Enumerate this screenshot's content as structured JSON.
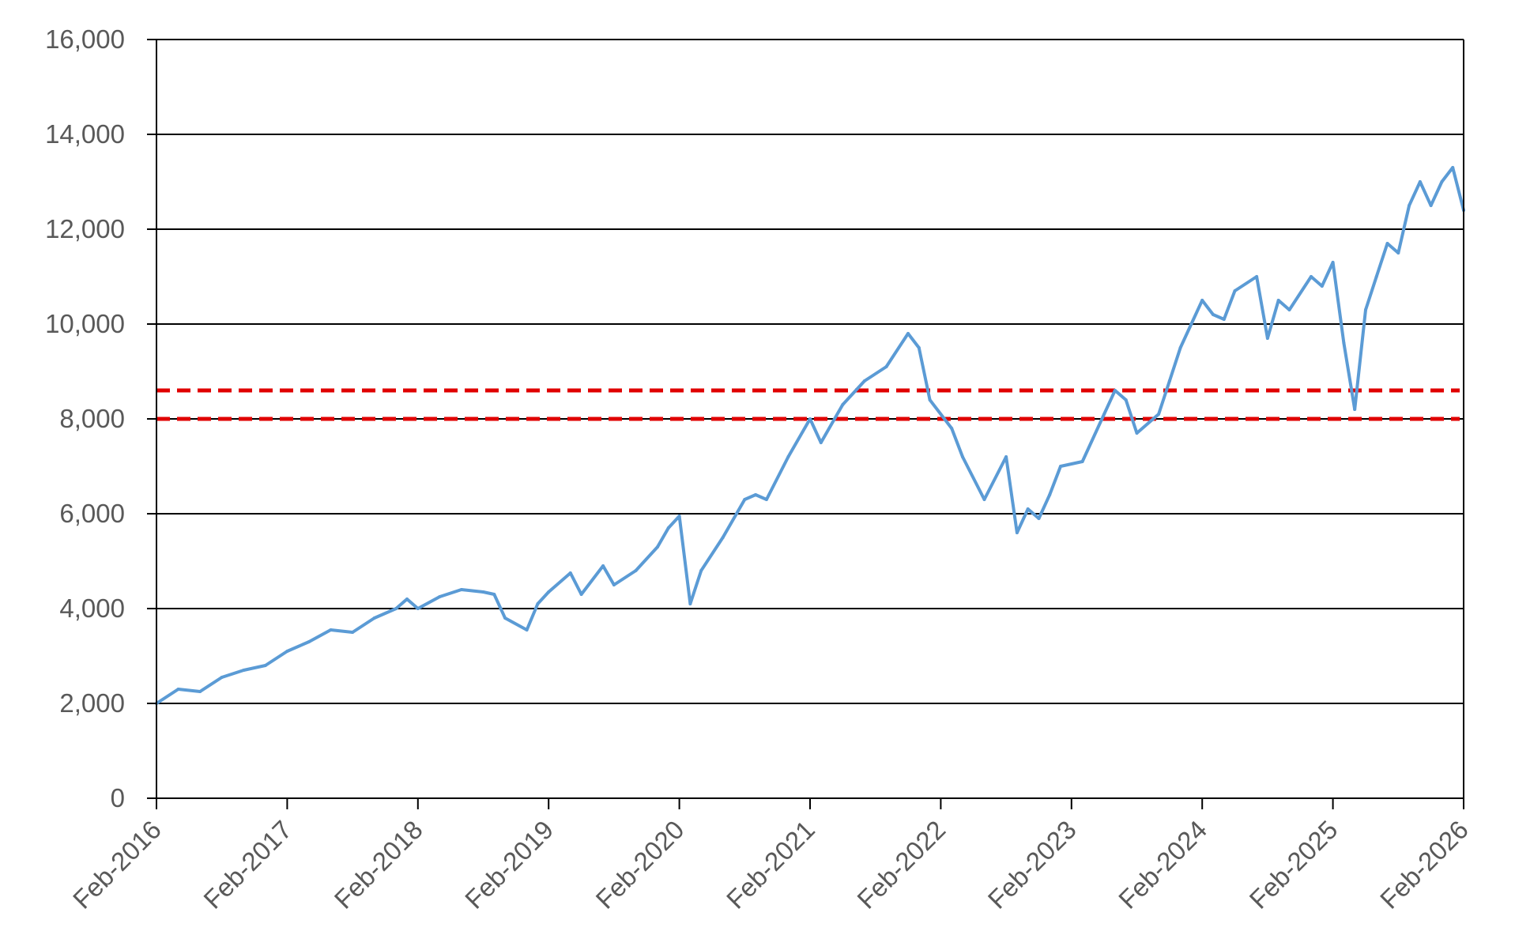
{
  "chart_data": {
    "type": "line",
    "title": "",
    "xlabel": "",
    "ylabel": "",
    "ylim": [
      0,
      16000
    ],
    "y_ticks": [
      0,
      2000,
      4000,
      6000,
      8000,
      10000,
      12000,
      14000,
      16000
    ],
    "y_tick_labels": [
      "0",
      "2,000",
      "4,000",
      "6,000",
      "8,000",
      "10,000",
      "12,000",
      "14,000",
      "16,000"
    ],
    "x_range": [
      "2016-02",
      "2026-02"
    ],
    "x_tick_labels": [
      "Feb-2016",
      "Feb-2017",
      "Feb-2018",
      "Feb-2019",
      "Feb-2020",
      "Feb-2021",
      "Feb-2022",
      "Feb-2023",
      "Feb-2024",
      "Feb-2025",
      "Feb-2026"
    ],
    "grid": "horizontal",
    "colors": {
      "series": "#5b9bd5",
      "reference": "#e00000",
      "grid": "#000000"
    },
    "series": [
      {
        "x": [
          "2016-02",
          "2016-04",
          "2016-06",
          "2016-08",
          "2016-10",
          "2016-12",
          "2017-02",
          "2017-04",
          "2017-06",
          "2017-08",
          "2017-10",
          "2017-12",
          "2018-01",
          "2018-02",
          "2018-04",
          "2018-06",
          "2018-08",
          "2018-09",
          "2018-10",
          "2018-12",
          "2019-01",
          "2019-02",
          "2019-04",
          "2019-05",
          "2019-07",
          "2019-08",
          "2019-10",
          "2019-12",
          "2020-01",
          "2020-02",
          "2020-03",
          "2020-04",
          "2020-06",
          "2020-08",
          "2020-09",
          "2020-10",
          "2020-12",
          "2021-02",
          "2021-03",
          "2021-05",
          "2021-07",
          "2021-09",
          "2021-11",
          "2021-12",
          "2022-01",
          "2022-03",
          "2022-04",
          "2022-06",
          "2022-08",
          "2022-09",
          "2022-10",
          "2022-11",
          "2022-12",
          "2023-01",
          "2023-03",
          "2023-05",
          "2023-06",
          "2023-07",
          "2023-08",
          "2023-10",
          "2023-11",
          "2023-12",
          "2024-01",
          "2024-02",
          "2024-03",
          "2024-04",
          "2024-05",
          "2024-07",
          "2024-08",
          "2024-09",
          "2024-10",
          "2024-12",
          "2025-01",
          "2025-02",
          "2025-03",
          "2025-04",
          "2025-05",
          "2025-06",
          "2025-07",
          "2025-08",
          "2025-09",
          "2025-10",
          "2025-11",
          "2025-12",
          "2026-01",
          "2026-02"
        ],
        "values": [
          2000,
          2300,
          2250,
          2550,
          2700,
          2800,
          3100,
          3300,
          3550,
          3500,
          3800,
          4000,
          4200,
          4000,
          4250,
          4400,
          4350,
          4300,
          3800,
          3550,
          4100,
          4350,
          4750,
          4300,
          4900,
          4500,
          4800,
          5300,
          5700,
          5950,
          4100,
          4800,
          5500,
          6300,
          6400,
          6300,
          7200,
          8000,
          7500,
          8300,
          8800,
          9100,
          9800,
          9500,
          8400,
          7800,
          7200,
          6300,
          7200,
          5600,
          6100,
          5900,
          6400,
          7000,
          7100,
          8100,
          8600,
          8400,
          7700,
          8100,
          8800,
          9500,
          10000,
          10500,
          10200,
          10100,
          10700,
          11000,
          9700,
          10500,
          10300,
          11000,
          10800,
          11300,
          9600,
          8200,
          10300,
          11000,
          11700,
          11500,
          12500,
          13000,
          12500,
          13000,
          13300,
          12400
        ]
      }
    ],
    "reference_lines": [
      8600,
      8000
    ]
  }
}
